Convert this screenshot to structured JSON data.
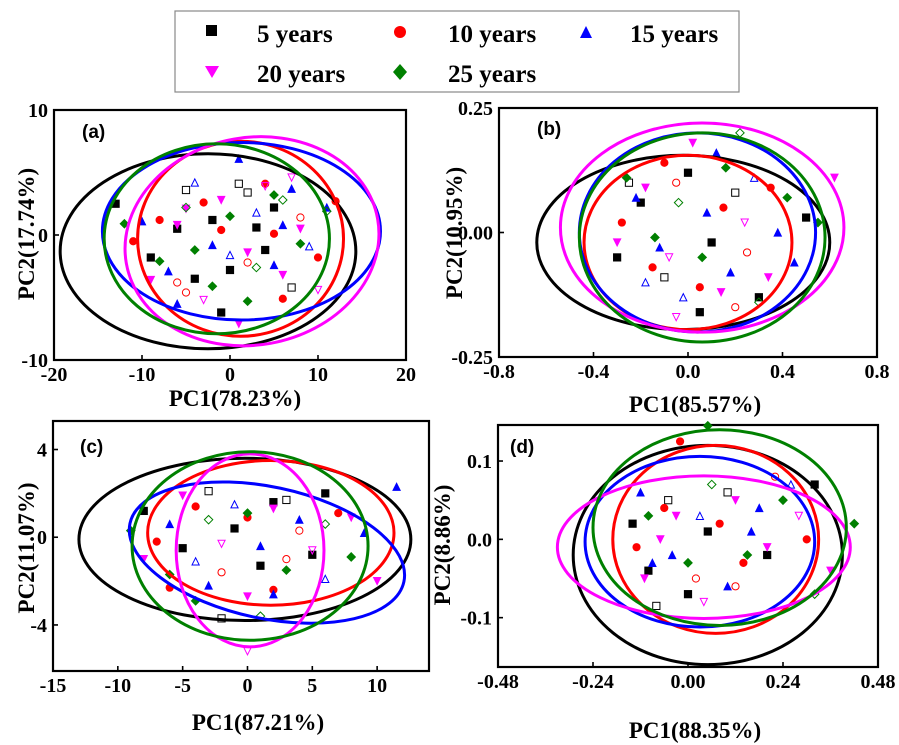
{
  "legend": {
    "entries": [
      {
        "label": "5 years",
        "color": "#000000",
        "marker": "square"
      },
      {
        "label": "10 years",
        "color": "#ff0000",
        "marker": "circle"
      },
      {
        "label": "15 years",
        "color": "#0000ff",
        "marker": "triangle-up"
      },
      {
        "label": "20 years",
        "color": "#ff00ff",
        "marker": "triangle-down"
      },
      {
        "label": "25 years",
        "color": "#008000",
        "marker": "diamond"
      }
    ]
  },
  "chart_data": [
    {
      "type": "scatter",
      "panel_label": "(a)",
      "xlabel": "PC1(78.23%)",
      "ylabel": "PC2(17.74%)",
      "xlim": [
        -20,
        20
      ],
      "ylim": [
        -10,
        10
      ],
      "xticks": [
        -20,
        -10,
        0,
        10,
        20
      ],
      "yticks": [
        -10,
        0,
        10
      ],
      "xtick_labels": [
        "-20",
        "-10",
        "0",
        "10",
        "20"
      ],
      "ytick_labels": [
        "-10",
        "0",
        "10"
      ],
      "grid": false,
      "ellipses": [
        {
          "series": "5 years",
          "cx": -2.5,
          "cy": -1.3,
          "rx": 16.8,
          "ry": 7.8,
          "rotation_deg": 0
        },
        {
          "series": "10 years",
          "cx": 1.2,
          "cy": -0.3,
          "rx": 11.7,
          "ry": 7.8,
          "rotation_deg": 0
        },
        {
          "series": "15 years",
          "cx": 1.3,
          "cy": 0.3,
          "rx": 15.8,
          "ry": 7.1,
          "rotation_deg": 0
        },
        {
          "series": "20 years",
          "cx": 2.5,
          "cy": -0.5,
          "rx": 14.5,
          "ry": 8.3,
          "rotation_deg": 10
        },
        {
          "series": "25 years",
          "cx": -1.5,
          "cy": -0.3,
          "rx": 12.8,
          "ry": 7.6,
          "rotation_deg": 0
        }
      ],
      "series": [
        {
          "name": "5 years",
          "x": [
            -13,
            -9,
            -5,
            -2,
            0,
            1,
            3,
            5,
            7,
            -6,
            -1,
            2,
            4,
            -4
          ],
          "y": [
            2.5,
            -1.8,
            3.6,
            1.2,
            -2.8,
            4.1,
            0.6,
            2.2,
            -4.2,
            0.5,
            -6.2,
            3.4,
            -1.2,
            -3.5
          ]
        },
        {
          "name": "10 years",
          "x": [
            -11,
            -8,
            -6,
            -3,
            -1,
            2,
            4,
            6,
            8,
            10,
            12,
            -5,
            5
          ],
          "y": [
            -0.5,
            1.2,
            -3.8,
            2.6,
            0.4,
            -2.2,
            4.1,
            -5.1,
            1.4,
            -1.8,
            2.7,
            -4.6,
            0.1
          ]
        },
        {
          "name": "15 years",
          "x": [
            -10,
            -7,
            -4,
            -2,
            1,
            3,
            5,
            7,
            9,
            11,
            -6,
            0,
            6
          ],
          "y": [
            1.1,
            -2.9,
            4.2,
            -0.8,
            6.1,
            1.8,
            -2.4,
            3.7,
            -0.9,
            2.2,
            -5.5,
            -1.6,
            0.8
          ]
        },
        {
          "name": "20 years",
          "x": [
            -9,
            -6,
            -3,
            -1,
            2,
            4,
            6,
            8,
            10,
            -5,
            1,
            7
          ],
          "y": [
            -3.6,
            0.8,
            -5.2,
            2.8,
            -1.4,
            3.9,
            -3.2,
            0.5,
            -4.4,
            2.1,
            -7.1,
            4.6
          ]
        },
        {
          "name": "25 years",
          "x": [
            -12,
            -8,
            -5,
            -2,
            0,
            3,
            5,
            8,
            11,
            -4,
            2,
            6
          ],
          "y": [
            0.9,
            -2.1,
            2.2,
            -4.1,
            1.5,
            -2.6,
            3.2,
            -0.7,
            1.9,
            -1.2,
            -5.3,
            2.8
          ]
        }
      ]
    },
    {
      "type": "scatter",
      "panel_label": "(b)",
      "xlabel": "PC1(85.57%)",
      "ylabel": "PC2(10.95%)",
      "xlim": [
        -0.8,
        0.8
      ],
      "ylim": [
        -0.25,
        0.25
      ],
      "xticks": [
        -0.8,
        -0.4,
        0,
        0.4,
        0.8
      ],
      "yticks": [
        -0.25,
        0,
        0.25
      ],
      "xtick_labels": [
        "-0.8",
        "-0.4",
        "0.0",
        "0.4",
        "0.8"
      ],
      "ytick_labels": [
        "-0.25",
        "0.00",
        "0.25"
      ],
      "grid": false,
      "ellipses": [
        {
          "series": "5 years",
          "cx": -0.02,
          "cy": -0.02,
          "rx": 0.62,
          "ry": 0.175,
          "rotation_deg": 0
        },
        {
          "series": "10 years",
          "cx": 0.0,
          "cy": -0.02,
          "rx": 0.44,
          "ry": 0.175,
          "rotation_deg": 0
        },
        {
          "series": "15 years",
          "cx": 0.04,
          "cy": 0.0,
          "rx": 0.5,
          "ry": 0.2,
          "rotation_deg": 0
        },
        {
          "series": "20 years",
          "cx": 0.06,
          "cy": 0.01,
          "rx": 0.6,
          "ry": 0.21,
          "rotation_deg": 0
        },
        {
          "series": "25 years",
          "cx": 0.06,
          "cy": -0.01,
          "rx": 0.52,
          "ry": 0.21,
          "rotation_deg": 0
        }
      ],
      "series": [
        {
          "name": "5 years",
          "x": [
            -0.3,
            -0.2,
            -0.1,
            0.0,
            0.1,
            0.2,
            0.3,
            0.5,
            -0.25,
            0.05
          ],
          "y": [
            -0.05,
            0.06,
            -0.09,
            0.12,
            -0.02,
            0.08,
            -0.13,
            0.03,
            0.1,
            -0.16
          ]
        },
        {
          "name": "10 years",
          "x": [
            -0.28,
            -0.15,
            -0.05,
            0.05,
            0.15,
            0.25,
            0.35,
            -0.1,
            0.2
          ],
          "y": [
            0.02,
            -0.07,
            0.1,
            -0.11,
            0.05,
            -0.04,
            0.09,
            0.14,
            -0.15
          ]
        },
        {
          "name": "15 years",
          "x": [
            -0.22,
            -0.12,
            -0.02,
            0.08,
            0.18,
            0.28,
            0.38,
            0.45,
            -0.18,
            0.12
          ],
          "y": [
            0.07,
            -0.03,
            -0.13,
            0.04,
            -0.08,
            0.11,
            0.0,
            -0.06,
            -0.1,
            0.16
          ]
        },
        {
          "name": "20 years",
          "x": [
            -0.3,
            -0.18,
            -0.08,
            0.02,
            0.14,
            0.24,
            0.34,
            0.62,
            -0.05
          ],
          "y": [
            -0.02,
            0.09,
            -0.05,
            0.18,
            -0.12,
            0.02,
            -0.09,
            0.11,
            -0.17
          ]
        },
        {
          "name": "25 years",
          "x": [
            -0.26,
            -0.14,
            -0.04,
            0.06,
            0.16,
            0.3,
            0.42,
            0.55,
            0.22
          ],
          "y": [
            0.11,
            -0.01,
            0.06,
            -0.05,
            0.13,
            -0.14,
            0.07,
            0.02,
            0.2
          ]
        }
      ]
    },
    {
      "type": "scatter",
      "panel_label": "(c)",
      "xlabel": "PC1(87.21%)",
      "ylabel": "PC2(11.07%)",
      "xlim": [
        -15,
        14
      ],
      "ylim": [
        -6.1,
        5.3
      ],
      "xticks": [
        -15,
        -10,
        -5,
        0,
        5,
        10
      ],
      "yticks": [
        -4,
        0,
        4
      ],
      "xtick_labels": [
        "-15",
        "-10",
        "-5",
        "0",
        "5",
        "10"
      ],
      "ytick_labels": [
        "-4",
        "0",
        "4"
      ],
      "grid": false,
      "ellipses": [
        {
          "series": "5 years",
          "cx": -0.2,
          "cy": -0.1,
          "rx": 12.8,
          "ry": 3.7,
          "rotation_deg": 0
        },
        {
          "series": "10 years",
          "cx": 1.8,
          "cy": 0.2,
          "rx": 9.5,
          "ry": 3.3,
          "rotation_deg": 0
        },
        {
          "series": "15 years",
          "cx": 1.5,
          "cy": -0.7,
          "rx": 10.8,
          "ry": 3.0,
          "rotation_deg": -12
        },
        {
          "series": "20 years",
          "cx": 0.2,
          "cy": -0.6,
          "rx": 5.7,
          "ry": 4.4,
          "rotation_deg": 0
        },
        {
          "series": "25 years",
          "cx": 0.2,
          "cy": -0.4,
          "rx": 9.1,
          "ry": 4.3,
          "rotation_deg": 0
        }
      ],
      "series": [
        {
          "name": "5 years",
          "x": [
            -8,
            -5,
            -3,
            -1,
            1,
            3,
            5,
            6,
            -2,
            2
          ],
          "y": [
            1.2,
            -0.5,
            2.1,
            0.4,
            -1.3,
            1.7,
            -0.8,
            2.0,
            -3.7,
            1.6
          ]
        },
        {
          "name": "10 years",
          "x": [
            -7,
            -4,
            -2,
            0,
            2,
            4,
            7,
            -6,
            3
          ],
          "y": [
            -0.2,
            1.4,
            -1.6,
            0.9,
            -2.4,
            0.3,
            1.1,
            -2.3,
            -1.0
          ]
        },
        {
          "name": "15 years",
          "x": [
            -6,
            -3,
            -1,
            1,
            4,
            6,
            9,
            11.5,
            -4,
            2
          ],
          "y": [
            0.6,
            -2.2,
            1.5,
            -0.4,
            0.8,
            -1.9,
            0.2,
            2.3,
            -1.1,
            -2.6
          ]
        },
        {
          "name": "20 years",
          "x": [
            -8,
            -5,
            -2,
            0,
            2,
            5,
            8,
            10,
            0
          ],
          "y": [
            -1.0,
            1.9,
            -0.3,
            -2.7,
            1.3,
            -0.6,
            0.9,
            -2.0,
            -5.2
          ]
        },
        {
          "name": "25 years",
          "x": [
            -9,
            -6,
            -3,
            0,
            3,
            6,
            8,
            -4,
            1
          ],
          "y": [
            0.3,
            -1.7,
            0.8,
            1.1,
            -1.5,
            0.6,
            -0.9,
            -2.9,
            -3.6
          ]
        }
      ]
    },
    {
      "type": "scatter",
      "panel_label": "(d)",
      "xlabel": "PC1(88.35%)",
      "ylabel": "PC2(8.86%)",
      "xlim": [
        -0.48,
        0.48
      ],
      "ylim": [
        -0.163,
        0.146
      ],
      "xticks": [
        -0.48,
        -0.24,
        0,
        0.24,
        0.48
      ],
      "yticks": [
        -0.1,
        0,
        0.1
      ],
      "xtick_labels": [
        "-0.48",
        "-0.24",
        "0.00",
        "0.24",
        "0.48"
      ],
      "ytick_labels": [
        "-0.1",
        "0.0",
        "0.1"
      ],
      "grid": false,
      "ellipses": [
        {
          "series": "5 years",
          "cx": 0.05,
          "cy": -0.02,
          "rx": 0.34,
          "ry": 0.14,
          "rotation_deg": 0
        },
        {
          "series": "10 years",
          "cx": 0.07,
          "cy": 0.0,
          "rx": 0.26,
          "ry": 0.12,
          "rotation_deg": 0
        },
        {
          "series": "15 years",
          "cx": 0.03,
          "cy": -0.003,
          "rx": 0.29,
          "ry": 0.109,
          "rotation_deg": 0
        },
        {
          "series": "20 years",
          "cx": 0.04,
          "cy": -0.01,
          "rx": 0.37,
          "ry": 0.091,
          "rotation_deg": 0
        },
        {
          "series": "25 years",
          "cx": 0.08,
          "cy": 0.015,
          "rx": 0.32,
          "ry": 0.125,
          "rotation_deg": 0
        }
      ],
      "series": [
        {
          "name": "5 years",
          "x": [
            -0.14,
            -0.1,
            -0.05,
            0.0,
            0.05,
            0.1,
            0.2,
            0.32,
            -0.08
          ],
          "y": [
            0.02,
            -0.04,
            0.05,
            -0.07,
            0.01,
            0.06,
            -0.02,
            0.07,
            -0.085
          ]
        },
        {
          "name": "10 years",
          "x": [
            -0.13,
            -0.06,
            0.02,
            0.08,
            0.14,
            0.22,
            0.3,
            -0.02,
            0.12
          ],
          "y": [
            -0.01,
            0.04,
            -0.05,
            0.02,
            -0.03,
            0.08,
            0.0,
            0.125,
            -0.06
          ]
        },
        {
          "name": "15 years",
          "x": [
            -0.12,
            -0.04,
            0.03,
            0.1,
            0.18,
            0.26,
            0.16,
            -0.09
          ],
          "y": [
            0.06,
            -0.02,
            0.03,
            -0.06,
            0.04,
            0.07,
            0.01,
            -0.03
          ]
        },
        {
          "name": "20 years",
          "x": [
            -0.11,
            -0.03,
            0.04,
            0.12,
            0.2,
            0.28,
            0.36,
            -0.07
          ],
          "y": [
            -0.05,
            0.03,
            -0.08,
            0.05,
            -0.01,
            0.03,
            -0.04,
            0.0
          ]
        },
        {
          "name": "25 years",
          "x": [
            -0.1,
            0.0,
            0.06,
            0.15,
            0.24,
            0.32,
            0.42,
            0.05
          ],
          "y": [
            0.03,
            -0.03,
            0.07,
            -0.02,
            0.05,
            -0.07,
            0.02,
            0.145
          ]
        }
      ]
    }
  ]
}
